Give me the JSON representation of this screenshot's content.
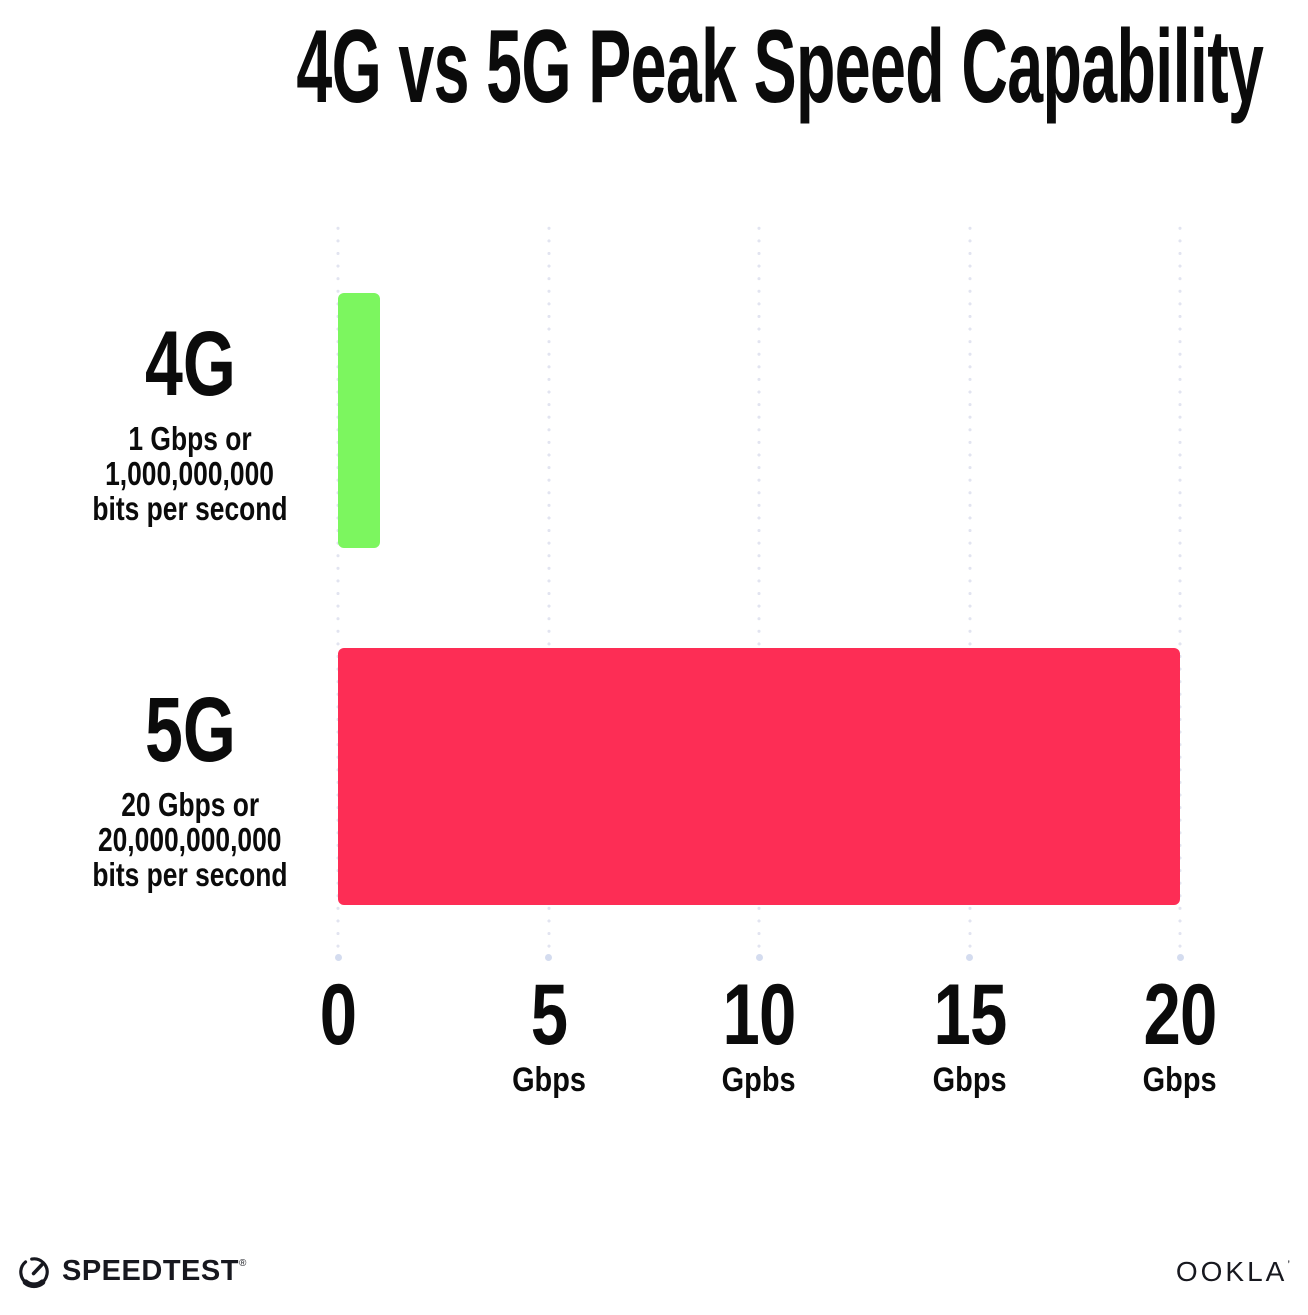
{
  "title": "4G vs 5G Peak Speed Capability",
  "chart_data": {
    "type": "bar",
    "orientation": "horizontal",
    "title": "4G vs 5G Peak Speed Capability",
    "categories": [
      "4G",
      "5G"
    ],
    "values": [
      1,
      20
    ],
    "value_unit": "Gbps",
    "xlim": [
      0,
      20
    ],
    "x_tick_values": [
      0,
      5,
      10,
      15,
      20
    ],
    "grid": "dotted-vertical-gridlines",
    "legend": "none",
    "bar_colors": [
      "#7cf65f",
      "#fd2d55"
    ],
    "rows": [
      {
        "name": "4G",
        "value_gbps": 1,
        "desc_lines": [
          "1 Gbps or",
          "1,000,000,000",
          "bits per second"
        ]
      },
      {
        "name": "5G",
        "value_gbps": 20,
        "desc_lines": [
          "20 Gbps or",
          "20,000,000,000",
          "bits per second"
        ]
      }
    ],
    "x_ticks": [
      {
        "label": "0",
        "unit": ""
      },
      {
        "label": "5",
        "unit": "Gbps"
      },
      {
        "label": "10",
        "unit": "Gpbs"
      },
      {
        "label": "15",
        "unit": "Gbps"
      },
      {
        "label": "20",
        "unit": "Gbps"
      }
    ]
  },
  "footer": {
    "speedtest_label": "SPEEDTEST",
    "speedtest_mark": "®",
    "ookla_label": "OOKLA",
    "ookla_mark": "’"
  },
  "colors": {
    "background": "#ffffff",
    "text": "#0b0b0b",
    "bar_4g": "#7cf65f",
    "bar_5g": "#fd2d55",
    "grid_dot": "#e2e4f0",
    "grid_endcap": "#d4dcef"
  }
}
